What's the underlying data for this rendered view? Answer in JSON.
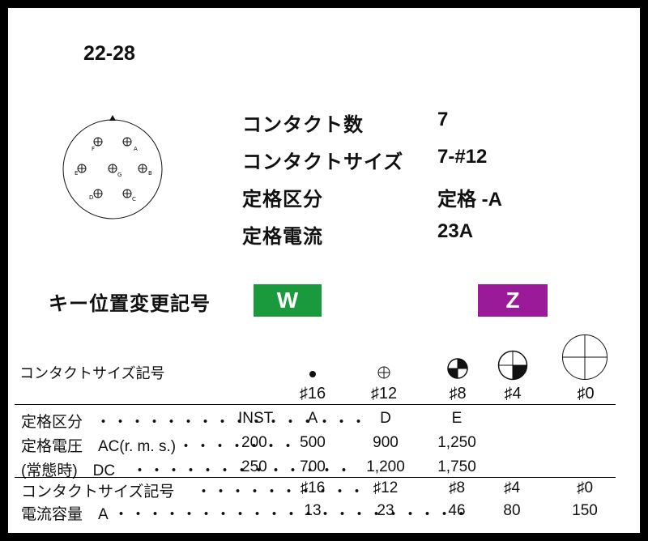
{
  "part_number": "22-28",
  "specs": [
    {
      "label": "コンタクト数",
      "value": "7"
    },
    {
      "label": "コンタクトサイズ",
      "value": "7-#12"
    },
    {
      "label": "定格区分",
      "value": "定格 -A"
    },
    {
      "label": "定格電流",
      "value": "23A"
    }
  ],
  "diagram": {
    "pins": [
      "A",
      "B",
      "C",
      "D",
      "E",
      "F",
      "G"
    ]
  },
  "key": {
    "label": "キー位置変更記号",
    "options": [
      {
        "label": "W",
        "color": "#1a9a3c"
      },
      {
        "label": "Z",
        "color": "#9b1a9a"
      }
    ]
  },
  "contact_section_label": "コンタクトサイズ記号",
  "contact_symbols": [
    "♯16",
    "♯12",
    "♯8",
    "♯4",
    "♯0"
  ],
  "rating_table": {
    "rows": [
      {
        "label": "定格区分",
        "dots": "・・・・・・・・・・・・・・・・",
        "ref": "INST",
        "values": [
          "A",
          "D",
          "E",
          "",
          ""
        ]
      },
      {
        "label": "定格電圧　AC(r. m. s.)",
        "dots": "・・・・・・・",
        "ref": "200",
        "values": [
          "500",
          "900",
          "1,250",
          "",
          ""
        ]
      },
      {
        "label": "(常態時)　DC",
        "dots": "・・・・・・・・・・・・・",
        "ref": "250",
        "values": [
          "700",
          "1,200",
          "1,750",
          "",
          ""
        ]
      }
    ]
  },
  "current_table": {
    "rows": [
      {
        "label": "コンタクトサイズ記号",
        "dots": "・・・・・・・・・・",
        "values": [
          "♯16",
          "♯12",
          "♯8",
          "♯4",
          "♯0"
        ]
      },
      {
        "label": "電流容量　A",
        "dots": "・・・・・・・・・・・・・・・・・・・・・",
        "values": [
          "13",
          "23",
          "46",
          "80",
          "150"
        ]
      }
    ]
  }
}
